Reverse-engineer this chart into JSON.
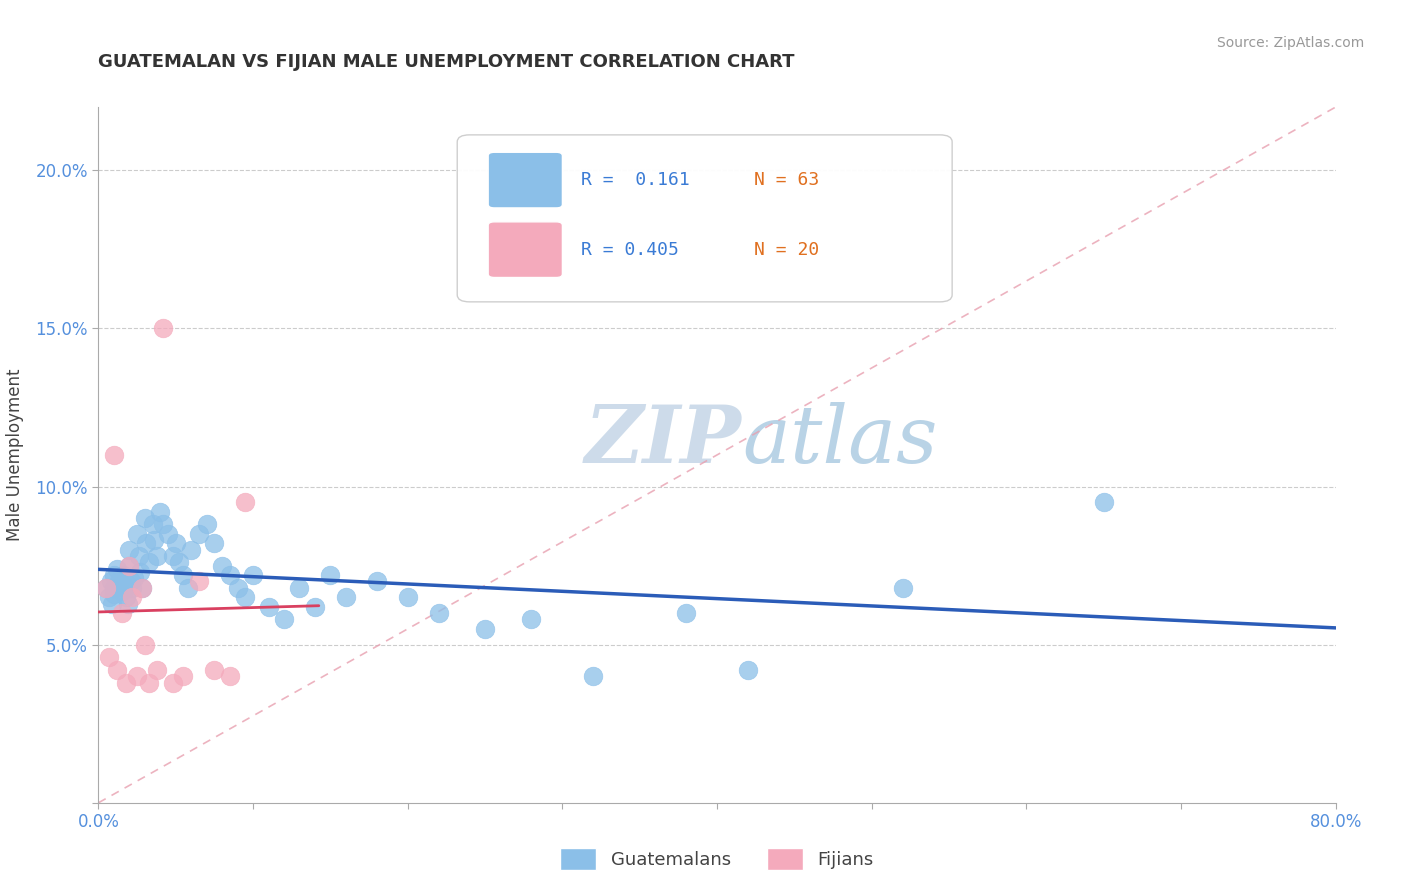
{
  "title": "GUATEMALAN VS FIJIAN MALE UNEMPLOYMENT CORRELATION CHART",
  "source": "Source: ZipAtlas.com",
  "ylabel_label": "Male Unemployment",
  "xlim": [
    0.0,
    0.8
  ],
  "ylim": [
    0.0,
    0.22
  ],
  "xticks": [
    0.0,
    0.1,
    0.2,
    0.3,
    0.4,
    0.5,
    0.6,
    0.7,
    0.8
  ],
  "xticklabels": [
    "0.0%",
    "",
    "",
    "",
    "",
    "",
    "",
    "",
    "80.0%"
  ],
  "yticks": [
    0.0,
    0.05,
    0.1,
    0.15,
    0.2
  ],
  "yticklabels": [
    "",
    "5.0%",
    "10.0%",
    "15.0%",
    "20.0%"
  ],
  "guatemalan_color": "#8BBFE8",
  "fijian_color": "#F4AABC",
  "guatemalan_line_color": "#2B5CB8",
  "fijian_line_color": "#D94060",
  "ref_dash_color": "#E8A0B0",
  "watermark_zip": "ZIP",
  "watermark_atlas": "atlas",
  "guatemalan_R": 0.161,
  "guatemalan_N": 63,
  "fijian_R": 0.405,
  "fijian_N": 20,
  "guatemalan_x": [
    0.005,
    0.007,
    0.008,
    0.009,
    0.01,
    0.01,
    0.01,
    0.012,
    0.013,
    0.015,
    0.015,
    0.016,
    0.017,
    0.018,
    0.019,
    0.02,
    0.02,
    0.021,
    0.022,
    0.023,
    0.025,
    0.026,
    0.027,
    0.028,
    0.03,
    0.031,
    0.033,
    0.035,
    0.036,
    0.038,
    0.04,
    0.042,
    0.045,
    0.048,
    0.05,
    0.052,
    0.055,
    0.058,
    0.06,
    0.065,
    0.07,
    0.075,
    0.08,
    0.085,
    0.09,
    0.095,
    0.1,
    0.11,
    0.12,
    0.13,
    0.14,
    0.15,
    0.16,
    0.18,
    0.2,
    0.22,
    0.25,
    0.28,
    0.32,
    0.38,
    0.42,
    0.52,
    0.65
  ],
  "guatemalan_y": [
    0.068,
    0.065,
    0.07,
    0.063,
    0.072,
    0.068,
    0.066,
    0.074,
    0.07,
    0.069,
    0.067,
    0.072,
    0.068,
    0.065,
    0.063,
    0.08,
    0.075,
    0.07,
    0.068,
    0.071,
    0.085,
    0.078,
    0.073,
    0.068,
    0.09,
    0.082,
    0.076,
    0.088,
    0.083,
    0.078,
    0.092,
    0.088,
    0.085,
    0.078,
    0.082,
    0.076,
    0.072,
    0.068,
    0.08,
    0.085,
    0.088,
    0.082,
    0.075,
    0.072,
    0.068,
    0.065,
    0.072,
    0.062,
    0.058,
    0.068,
    0.062,
    0.072,
    0.065,
    0.07,
    0.065,
    0.06,
    0.055,
    0.058,
    0.04,
    0.06,
    0.042,
    0.068,
    0.095
  ],
  "fijian_x": [
    0.005,
    0.007,
    0.01,
    0.012,
    0.015,
    0.018,
    0.02,
    0.022,
    0.025,
    0.028,
    0.03,
    0.033,
    0.038,
    0.042,
    0.048,
    0.055,
    0.065,
    0.075,
    0.085,
    0.095
  ],
  "fijian_y": [
    0.068,
    0.046,
    0.11,
    0.042,
    0.06,
    0.038,
    0.075,
    0.065,
    0.04,
    0.068,
    0.05,
    0.038,
    0.042,
    0.15,
    0.038,
    0.04,
    0.07,
    0.042,
    0.04,
    0.095
  ]
}
